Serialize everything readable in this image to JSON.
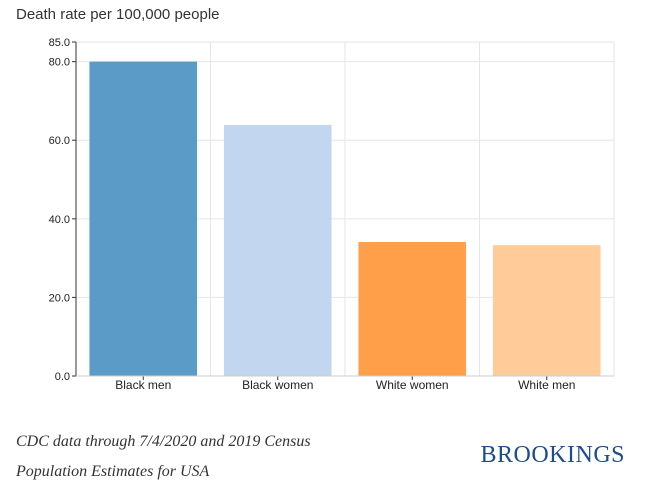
{
  "chart_data": {
    "type": "bar",
    "title": "Death rate per 100,000 people",
    "xlabel": "",
    "ylabel": "",
    "ylim": [
      0,
      85
    ],
    "y_ticks": [
      {
        "value": 0,
        "label": "0.0"
      },
      {
        "value": 20,
        "label": "20.0"
      },
      {
        "value": 40,
        "label": "40.0"
      },
      {
        "value": 60,
        "label": "60.0"
      },
      {
        "value": 80,
        "label": "80.0"
      },
      {
        "value": 85,
        "label": "85.0"
      }
    ],
    "categories": [
      "Black men",
      "Black women",
      "White women",
      "White men"
    ],
    "values": [
      80.0,
      63.9,
      34.1,
      33.3
    ],
    "colors": [
      "#5a9bc8",
      "#c3d6ef",
      "#ff9f4a",
      "#ffcc99"
    ],
    "grid": true,
    "legend": "none"
  },
  "footer": {
    "source_line_1": "CDC data through 7/4/2020 and 2019 Census",
    "source_line_2": "Population Estimates for USA",
    "brand": "BROOKINGS"
  }
}
